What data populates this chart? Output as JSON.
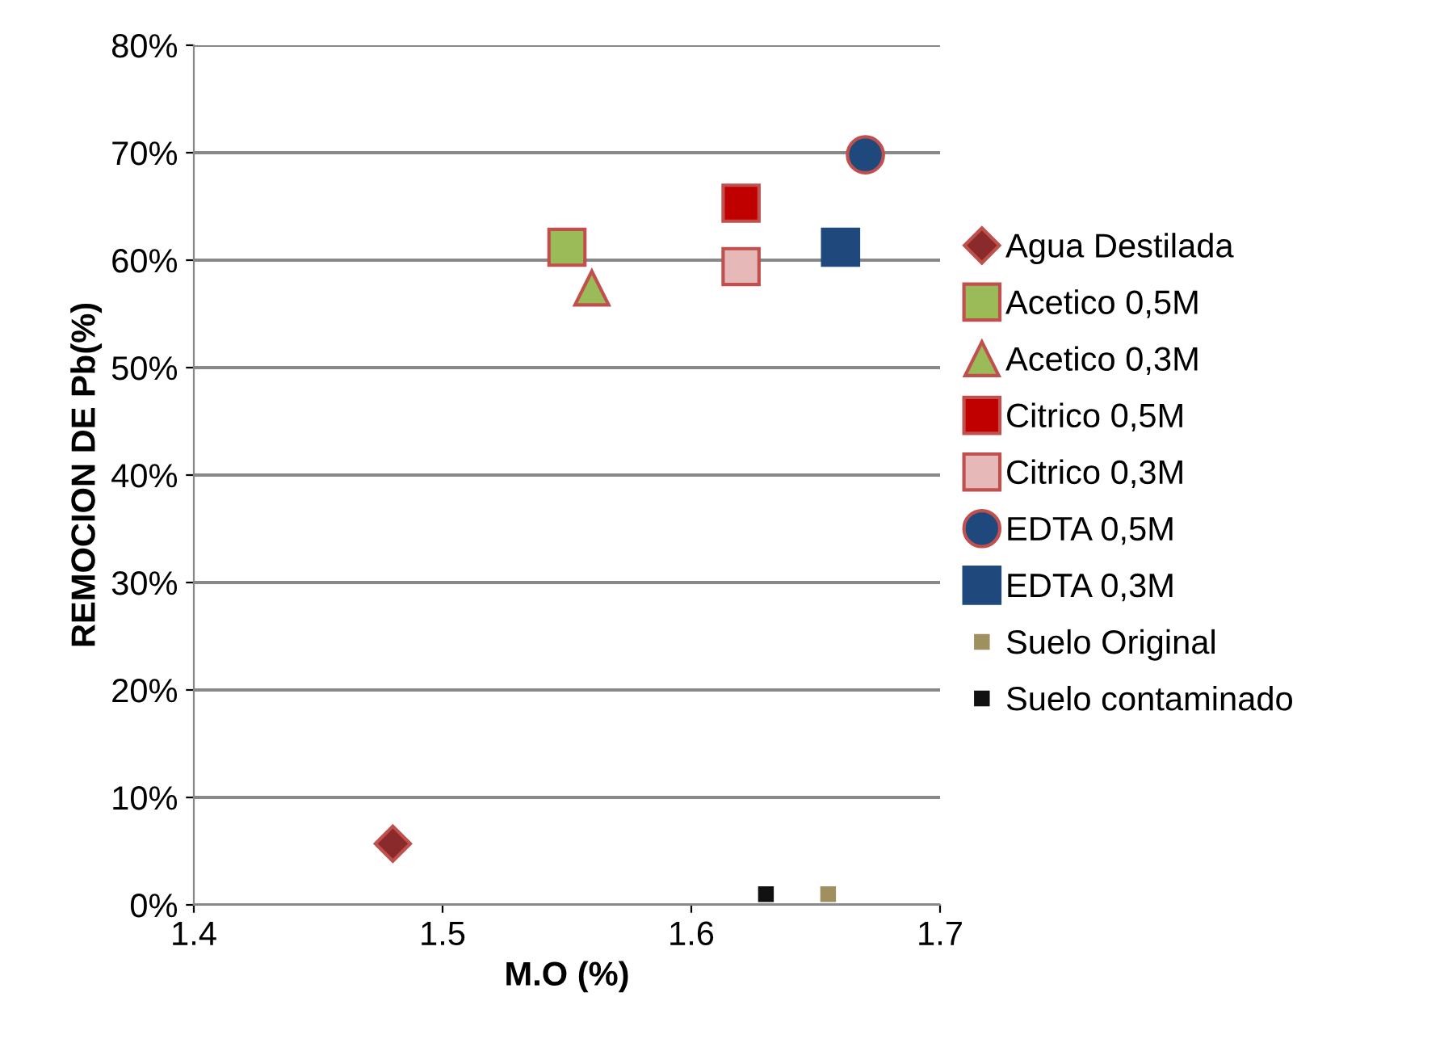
{
  "chart_data": {
    "type": "scatter",
    "xlabel": "M.O (%)",
    "ylabel": "REMOCION DE Pb(%)",
    "xlim": [
      1.4,
      1.7
    ],
    "xticks": [
      1.4,
      1.5,
      1.6,
      1.7
    ],
    "ylim": [
      0,
      80
    ],
    "yticks": [
      {
        "value": 0,
        "label": "0%"
      },
      {
        "value": 10,
        "label": "10%"
      },
      {
        "value": 20,
        "label": "20%"
      },
      {
        "value": 30,
        "label": "30%"
      },
      {
        "value": 40,
        "label": "40%"
      },
      {
        "value": 50,
        "label": "50%"
      },
      {
        "value": 60,
        "label": "60%"
      },
      {
        "value": 70,
        "label": "70%"
      },
      {
        "value": 80,
        "label": "80%"
      }
    ],
    "grid": "y",
    "legend": "right",
    "series": [
      {
        "name": "Agua Destilada",
        "color": "#8b2a2a",
        "marker": "diamond",
        "x": [
          1.48
        ],
        "values": [
          5.7
        ]
      },
      {
        "name": "Acetico 0,5M",
        "color": "#9bbb59",
        "marker": "square",
        "x": [
          1.55
        ],
        "values": [
          61.2
        ]
      },
      {
        "name": "Acetico 0,3M",
        "color": "#9bbb59",
        "marker": "triangle",
        "x": [
          1.56
        ],
        "values": [
          57.4
        ]
      },
      {
        "name": "Citrico 0,5M",
        "color": "#c00000",
        "marker": "square",
        "x": [
          1.62
        ],
        "values": [
          65.3
        ]
      },
      {
        "name": "Citrico 0,3M",
        "color": "#e6b9b8",
        "marker": "square",
        "x": [
          1.62
        ],
        "values": [
          59.4
        ]
      },
      {
        "name": "EDTA 0,5M",
        "color": "#1f497d",
        "marker": "circle",
        "x": [
          1.67
        ],
        "values": [
          69.8
        ]
      },
      {
        "name": "EDTA 0,3M",
        "color": "#1f497d",
        "marker": "square",
        "x": [
          1.66
        ],
        "values": [
          61.2
        ]
      },
      {
        "name": "Suelo Original",
        "color": "#a09060",
        "marker": "square",
        "x": [
          1.655
        ],
        "values": [
          1.0
        ]
      },
      {
        "name": "Suelo contaminado",
        "color": "#111111",
        "marker": "square",
        "x": [
          1.63
        ],
        "values": [
          1.0
        ]
      }
    ]
  }
}
